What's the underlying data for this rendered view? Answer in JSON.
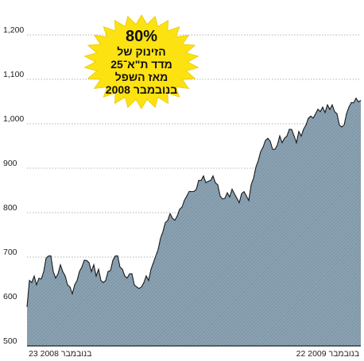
{
  "chart_data": {
    "type": "area",
    "title": "",
    "xlabel": "",
    "ylabel": "",
    "ylim": [
      500,
      1250
    ],
    "yticks": [
      500,
      600,
      700,
      800,
      900,
      1000,
      1100,
      1200
    ],
    "ytick_labels": [
      "500",
      "600",
      "700",
      "800",
      "900",
      "1,000",
      "1,100",
      "1,200"
    ],
    "x_start_label": "23 בנובמבר 2008",
    "x_end_label": "22 בנובמבר 2009",
    "grid": "horizontal-dotted",
    "area_color": "#7d97a8",
    "line_color": "#1a1a1a",
    "series": [
      {
        "values": [
          585,
          650,
          640,
          660,
          635,
          655,
          648,
          670,
          695,
          705,
          700,
          670,
          650,
          665,
          680,
          670,
          655,
          640,
          630,
          620,
          635,
          650,
          665,
          680,
          690,
          695,
          685,
          670,
          680,
          660,
          670,
          650,
          640,
          650,
          665,
          672,
          690,
          705,
          700,
          680,
          670,
          660,
          650,
          665,
          660,
          640,
          630,
          632,
          630,
          645,
          655,
          650,
          670,
          690,
          700,
          720,
          740,
          760,
          775,
          785,
          795,
          790,
          780,
          795,
          805,
          815,
          825,
          840,
          845,
          850,
          845,
          855,
          870,
          875,
          880,
          870,
          868,
          875,
          880,
          870,
          860,
          840,
          828,
          835,
          842,
          838,
          850,
          845,
          830,
          825,
          840,
          850,
          835,
          830,
          860,
          880,
          900,
          920,
          935,
          950,
          960,
          970,
          958,
          945,
          940,
          955,
          970,
          960,
          965,
          975,
          985,
          990,
          970,
          960,
          980,
          975,
          985,
          1000,
          1010,
          1020,
          1010,
          1025,
          1030,
          1030,
          1035,
          1028,
          1040,
          1035,
          1040,
          1030,
          1020,
          1000,
          990,
          1000,
          1020,
          1040,
          1045,
          1050,
          1055,
          1052,
          1050
        ]
      }
    ]
  },
  "callout": {
    "percent": "80%",
    "lines": [
      "הזינוק של",
      "מדד ת\"א־25",
      "מאז השפל",
      "בנובמבר 2008"
    ],
    "fill": "#fde212"
  }
}
